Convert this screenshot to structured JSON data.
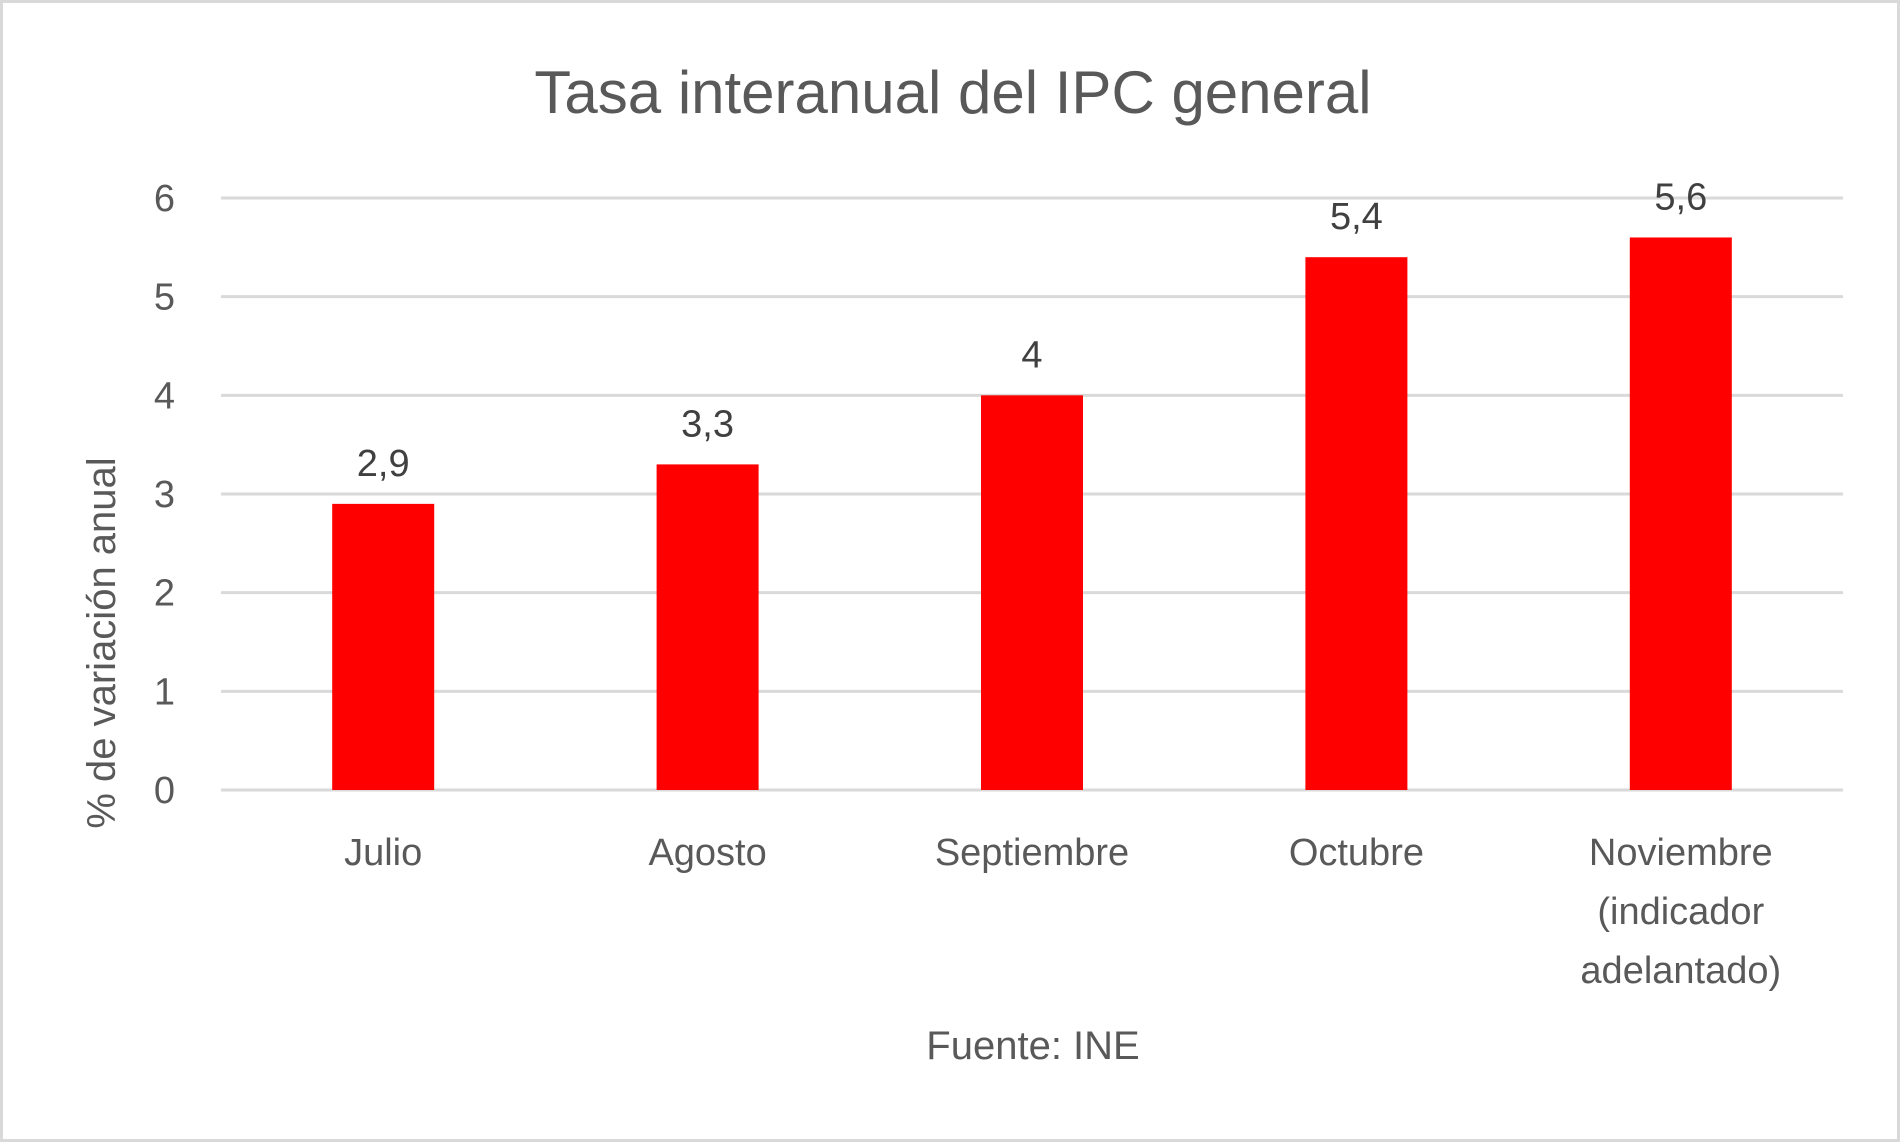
{
  "chart_data": {
    "type": "bar",
    "title": "Tasa interanual del IPC general",
    "ylabel": "% de variación anual",
    "xlabel": "Fuente: INE",
    "ylim": [
      0,
      6
    ],
    "yticks": [
      "0",
      "1",
      "2",
      "3",
      "4",
      "5",
      "6"
    ],
    "grid": true,
    "categories": [
      [
        "Julio"
      ],
      [
        "Agosto"
      ],
      [
        "Septiembre"
      ],
      [
        "Octubre"
      ],
      [
        "Noviembre",
        "(indicador",
        "adelantado)"
      ]
    ],
    "values": [
      2.9,
      3.3,
      4,
      5.4,
      5.6
    ],
    "data_labels": [
      "2,9",
      "3,3",
      "4",
      "5,4",
      "5,6"
    ],
    "bar_color": "#ff0000"
  }
}
